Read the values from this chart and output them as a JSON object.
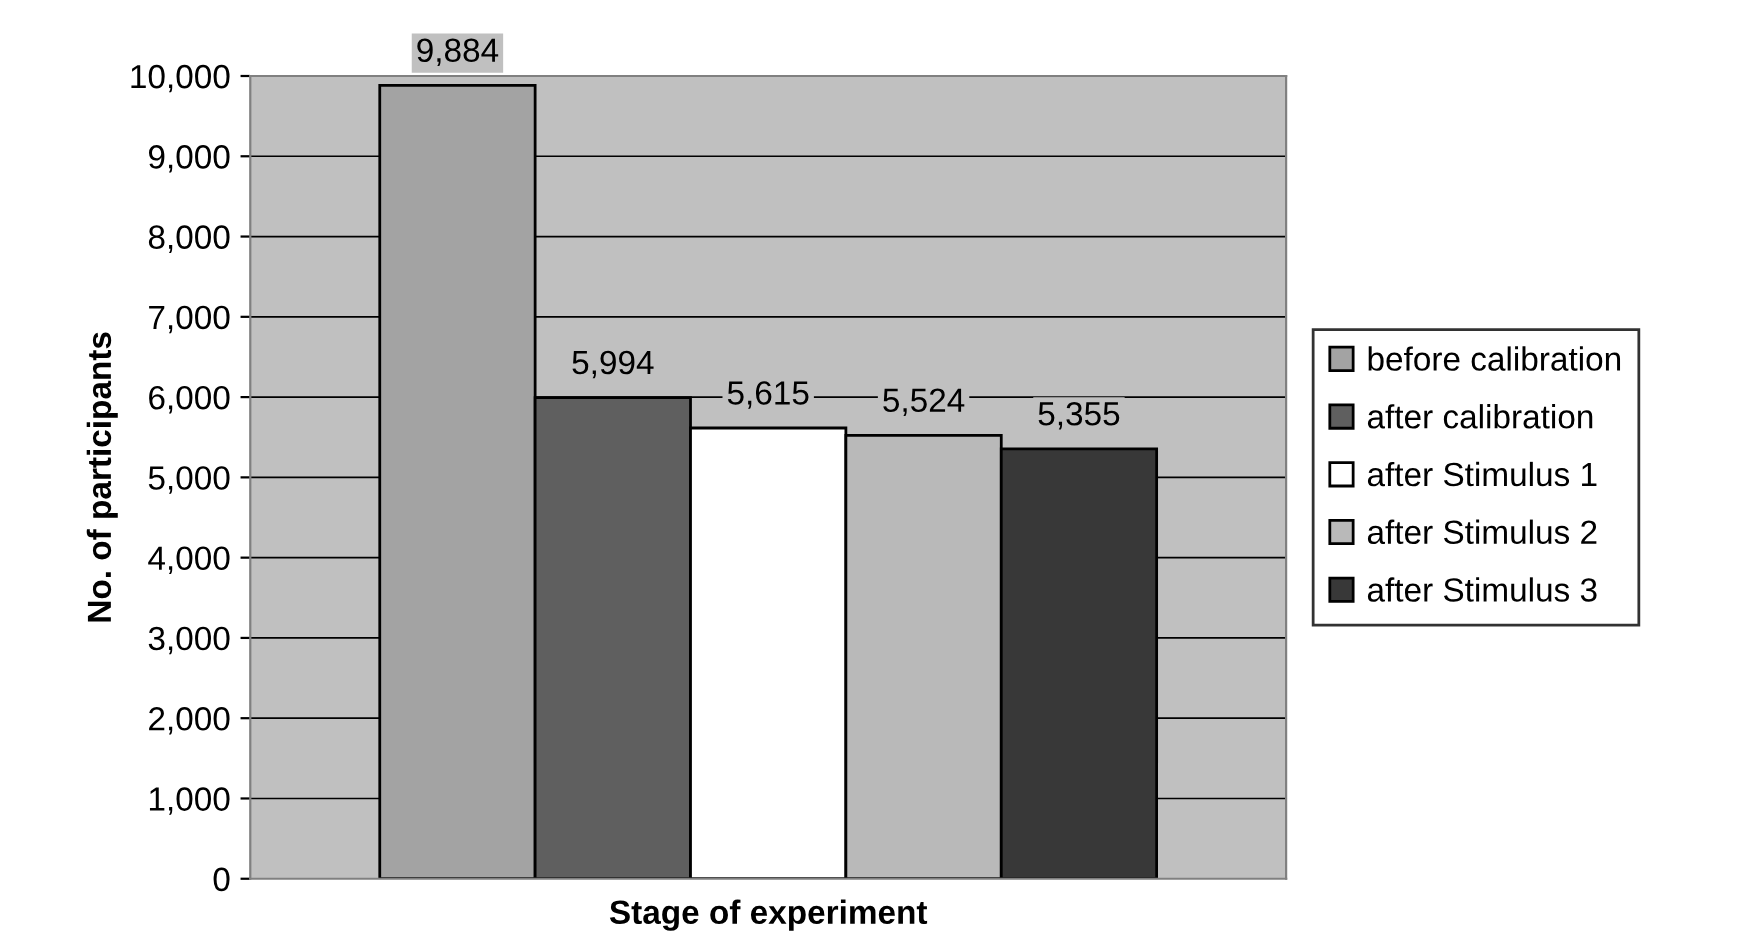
{
  "chart_data": {
    "type": "bar",
    "xlabel": "Stage of experiment",
    "ylabel": "No. of participants",
    "categories": [
      null
    ],
    "series": [
      {
        "name": "before calibration",
        "color": "#a3a3a3",
        "values": [
          9884
        ],
        "value_labels": [
          "9,884"
        ]
      },
      {
        "name": "after calibration",
        "color": "#5f5f5f",
        "values": [
          5994
        ],
        "value_labels": [
          "5,994"
        ]
      },
      {
        "name": "after Stimulus 1",
        "color": "#ffffff",
        "values": [
          5615
        ],
        "value_labels": [
          "5,615"
        ]
      },
      {
        "name": "after Stimulus 2",
        "color": "#b9b9b9",
        "values": [
          5524
        ],
        "value_labels": [
          "5,524"
        ]
      },
      {
        "name": "after Stimulus 3",
        "color": "#383838",
        "values": [
          5355
        ],
        "value_labels": [
          "5,355"
        ]
      }
    ],
    "ylim": [
      0,
      10000
    ],
    "yticks": [
      {
        "value": 0,
        "label": "0"
      },
      {
        "value": 1000,
        "label": "1,000"
      },
      {
        "value": 2000,
        "label": "2,000"
      },
      {
        "value": 3000,
        "label": "3,000"
      },
      {
        "value": 4000,
        "label": "4,000"
      },
      {
        "value": 5000,
        "label": "5,000"
      },
      {
        "value": 6000,
        "label": "6,000"
      },
      {
        "value": 7000,
        "label": "7,000"
      },
      {
        "value": 8000,
        "label": "8,000"
      },
      {
        "value": 9000,
        "label": "9,000"
      },
      {
        "value": 10000,
        "label": "10,000"
      }
    ],
    "grid": "y",
    "legend": "right"
  }
}
